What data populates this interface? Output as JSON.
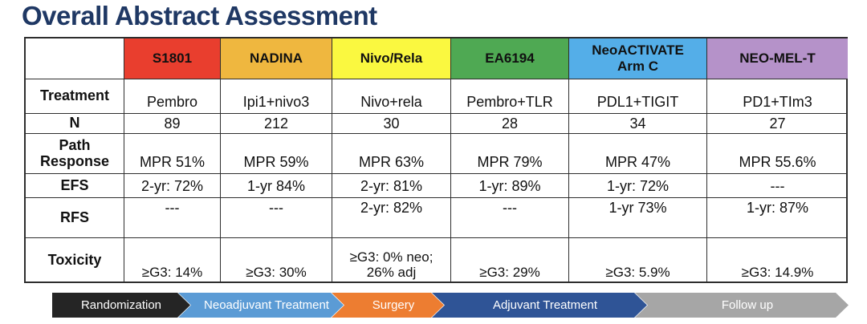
{
  "title": "Overall Abstract Assessment",
  "table": {
    "columns": [
      {
        "label": "",
        "color": "#FFFFFF"
      },
      {
        "label": "S1801",
        "color": "#E93E2E"
      },
      {
        "label": "NADINA",
        "color": "#EFB73F"
      },
      {
        "label": "Nivo/Rela",
        "color": "#FAF840"
      },
      {
        "label": "EA6194",
        "color": "#4FA953"
      },
      {
        "label": "NeoACTIVATE\nArm C",
        "color": "#54AEE8"
      },
      {
        "label": "NEO-MEL-T",
        "color": "#B592C9"
      }
    ],
    "rows": [
      {
        "label": "Treatment",
        "values": [
          "Pembro",
          "Ipi1+nivo3",
          "Nivo+rela",
          "Pembro+TLR",
          "PDL1+TIGIT",
          "PD1+TIm3"
        ]
      },
      {
        "label": "N",
        "values": [
          "89",
          "212",
          "30",
          "28",
          "34",
          "27"
        ]
      },
      {
        "label": "Path Response",
        "values": [
          "MPR 51%",
          "MPR 59%",
          "MPR 63%",
          "MPR 79%",
          "MPR 47%",
          "MPR 55.6%"
        ]
      },
      {
        "label": "EFS",
        "values": [
          "2-yr: 72%",
          "1-yr 84%",
          "2-yr: 81%",
          "1-yr: 89%",
          "1-yr: 72%",
          "---"
        ]
      },
      {
        "label": "RFS",
        "values": [
          "---",
          "---",
          "2-yr: 82%",
          "---",
          "1-yr  73%",
          "1-yr: 87%"
        ]
      },
      {
        "label": "Toxicity",
        "values": [
          "≥G3: 14%",
          "≥G3: 30%",
          "≥G3: 0% neo;\n26% adj",
          "≥G3: 29%",
          "≥G3: 5.9%",
          "≥G3: 14.9%"
        ]
      }
    ]
  },
  "timeline": {
    "steps": [
      {
        "label": "Randomization",
        "color": "#252525"
      },
      {
        "label": "Neoadjuvant Treatment",
        "color": "#5B9BD5"
      },
      {
        "label": "Surgery",
        "color": "#ED7D31"
      },
      {
        "label": "Adjuvant Treatment",
        "color": "#2F5496"
      },
      {
        "label": "Follow up",
        "color": "#A6A6A6"
      }
    ]
  }
}
